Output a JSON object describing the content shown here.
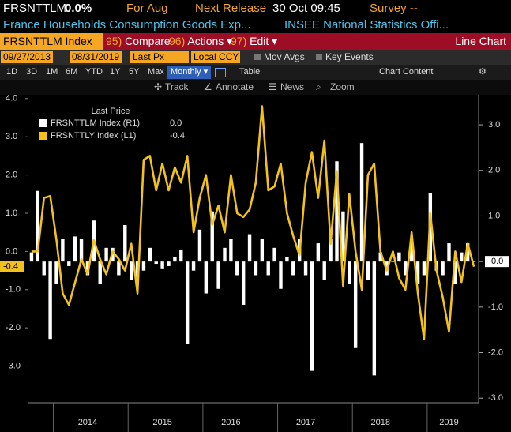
{
  "header": {
    "ticker": "FRSNTTLM",
    "change": "0.0%",
    "period": "For Aug",
    "next_release_label": "Next Release",
    "next_release": "30 Oct 09:45",
    "survey": "Survey --",
    "description": "France Households Consumption Goods Exp...",
    "source": "INSEE National Statistics Offi..."
  },
  "toolbar": {
    "security": "FRSNTTLM Index",
    "menus": [
      {
        "num": "95)",
        "label": "Compare"
      },
      {
        "num": "96)",
        "label": "Actions ▾"
      },
      {
        "num": "97)",
        "label": "Edit ▾"
      }
    ],
    "view": "Line Chart"
  },
  "range": {
    "start": "09/27/2013",
    "end": "08/31/2019",
    "field": "Last Px",
    "currency": "Local CCY",
    "options": [
      "Mov Avgs",
      "Key Events"
    ]
  },
  "periods": [
    "1D",
    "3D",
    "1M",
    "6M",
    "YTD",
    "1Y",
    "5Y",
    "Max"
  ],
  "frequency": "Monthly ▾",
  "table": "Table",
  "chart_content": "Chart Content",
  "tools": [
    "Track",
    "Annotate",
    "News",
    "Zoom"
  ],
  "chart_data": {
    "type": "combo",
    "legend_title": "Last Price",
    "categories": [
      null,
      null,
      null,
      null,
      null,
      null,
      null,
      null,
      null,
      "2014",
      null,
      null,
      null,
      null,
      null,
      null,
      null,
      null,
      null,
      null,
      null,
      "2015",
      null,
      null,
      null,
      null,
      null,
      null,
      null,
      null,
      null,
      null,
      "2016",
      null,
      null,
      null,
      null,
      null,
      null,
      null,
      null,
      null,
      null,
      null,
      "2017",
      null,
      null,
      null,
      null,
      null,
      null,
      null,
      null,
      null,
      null,
      null,
      "2018",
      null,
      null,
      null,
      null,
      null,
      null,
      null,
      null,
      null,
      null,
      "2019",
      null,
      null,
      null,
      null
    ],
    "series": [
      {
        "name": "FRSNTTLM Index (R1)",
        "type": "bar",
        "axis": "y2",
        "color": "#ffffff",
        "last_label": "0.0",
        "values": [
          0.2,
          1.55,
          -0.3,
          -1.7,
          -0.5,
          0.5,
          -0.1,
          0.55,
          0.5,
          -0.3,
          0.9,
          -0.5,
          0.3,
          0.3,
          -0.3,
          0.8,
          -0.4,
          -0.35,
          -0.2,
          0.3,
          -0.05,
          -0.15,
          -0.1,
          0.1,
          0.25,
          -1.8,
          -0.2,
          0.7,
          -0.7,
          1.1,
          -0.6,
          0.3,
          0.5,
          -0.3,
          -0.95,
          0.6,
          -0.3,
          0.5,
          -0.3,
          0.3,
          -0.6,
          0.1,
          -0.3,
          0.5,
          -0.3,
          -2.4,
          0.4,
          -0.4,
          0.5,
          2.2,
          1.1,
          -0.5,
          -1.9,
          2.6,
          -0.4,
          -2.5,
          0.2,
          -0.3,
          0.0,
          0.2,
          -0.3,
          0.5,
          -0.5,
          -0.3,
          1.5,
          -0.2,
          -0.3,
          0.4,
          -0.5,
          0.2,
          0.4,
          0.0
        ]
      },
      {
        "name": "FRSNTTLY Index (L1)",
        "type": "line",
        "color": "#f2c21b",
        "last_label": "-0.4",
        "values": [
          0.0,
          0.0,
          1.4,
          1.45,
          0.3,
          -1.1,
          -1.4,
          -0.8,
          -0.2,
          -0.6,
          0.3,
          -0.2,
          -0.6,
          0.0,
          -0.2,
          -0.5,
          0.2,
          -1.1,
          2.4,
          2.5,
          1.6,
          2.3,
          1.6,
          2.2,
          1.8,
          2.5,
          0.5,
          1.4,
          2.0,
          0.7,
          1.2,
          0.5,
          2.0,
          1.0,
          0.9,
          1.1,
          1.8,
          3.8,
          1.6,
          1.7,
          2.3,
          1.0,
          0.4,
          -0.1,
          1.8,
          2.6,
          1.4,
          2.9,
          0.2,
          2.1,
          -0.9,
          1.5,
          0.0,
          -1.0,
          2.0,
          2.3,
          0.0,
          -0.5,
          0.0,
          -0.7,
          -1.0,
          0.5,
          -1.1,
          -2.3,
          1.0,
          -0.5,
          -1.2,
          -2.1,
          0.0,
          -0.8,
          0.2,
          -0.4
        ]
      }
    ],
    "ylim": [
      -3.96,
      4.1
    ],
    "yticks": [
      {
        "value": 4,
        "label": "4.0"
      },
      {
        "value": 3,
        "label": "3.0"
      },
      {
        "value": 2,
        "label": "2.0"
      },
      {
        "value": 1,
        "label": "1.0"
      },
      {
        "value": 0,
        "label": "0.0"
      },
      {
        "value": -1,
        "label": "-1.0"
      },
      {
        "value": -2,
        "label": "-2.0"
      },
      {
        "value": -3,
        "label": "-3.0"
      }
    ],
    "y2lim": [
      -3.1,
      3.66
    ],
    "y2ticks": [
      {
        "value": 3,
        "label": "3.0"
      },
      {
        "value": 2,
        "label": "2.0"
      },
      {
        "value": 1,
        "label": "1.0"
      },
      {
        "value": 0,
        "label": "0.0"
      },
      {
        "value": -1,
        "label": "-1.0"
      },
      {
        "value": -2,
        "label": "-2.0"
      },
      {
        "value": -3,
        "label": "-3.0"
      }
    ]
  }
}
